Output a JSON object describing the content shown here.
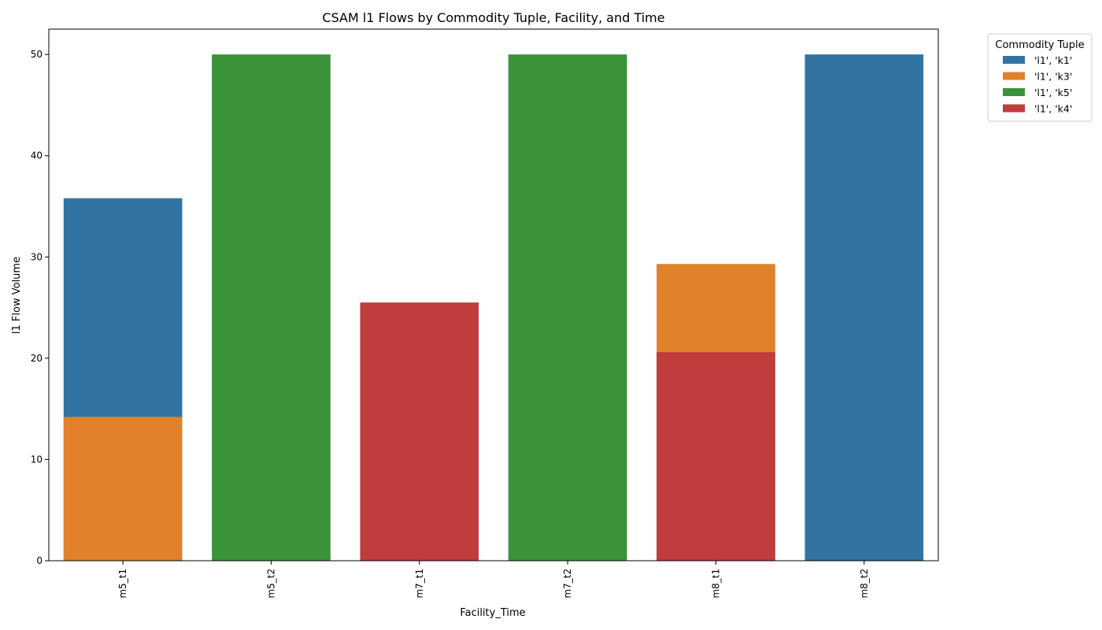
{
  "chart_data": {
    "type": "bar",
    "title": "CSAM l1 Flows by Commodity Tuple, Facility, and Time",
    "xlabel": "Facility_Time",
    "ylabel": "l1 Flow Volume",
    "categories": [
      "m5_t1",
      "m5_t2",
      "m7_t1",
      "m7_t2",
      "m8_t1",
      "m8_t2"
    ],
    "ylim": [
      0,
      52.5
    ],
    "yticks": [
      0,
      10,
      20,
      30,
      40,
      50
    ],
    "grid": false,
    "legend": {
      "title": "Commodity Tuple",
      "placement": "outside-top-right"
    },
    "bar_layering": "overlaid (not stacked); each series drawn from zero, later series drawn on top",
    "series": [
      {
        "name": "'l1', 'k1'",
        "color": "#3274a1",
        "values": [
          35.8,
          null,
          null,
          null,
          null,
          50
        ]
      },
      {
        "name": "'l1', 'k3'",
        "color": "#e1812c",
        "values": [
          14.2,
          null,
          null,
          null,
          29.3,
          null
        ]
      },
      {
        "name": "'l1', 'k5'",
        "color": "#3a923a",
        "values": [
          null,
          50,
          null,
          50,
          null,
          null
        ]
      },
      {
        "name": "'l1', 'k4'",
        "color": "#c03d3e",
        "values": [
          null,
          null,
          25.5,
          null,
          20.6,
          null
        ]
      }
    ]
  }
}
